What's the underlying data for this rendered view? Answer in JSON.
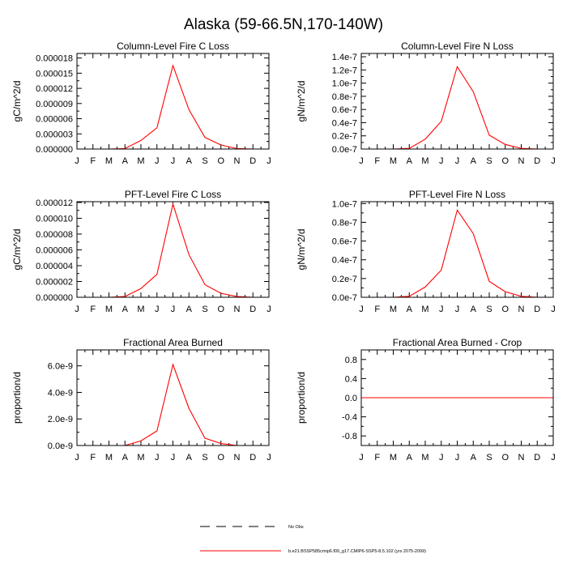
{
  "figure_title": "Alaska (59-66.5N,170-140W)",
  "month_labels": [
    "J",
    "F",
    "M",
    "A",
    "M",
    "J",
    "J",
    "A",
    "S",
    "O",
    "N",
    "D",
    "J"
  ],
  "colors": {
    "model_line": "#ff0000",
    "axis": "#000000",
    "obs_line": "#000000"
  },
  "legend": {
    "obs_label": "No Obs",
    "model_label": "b.e21.BSSP585cmip6.f09_g17.CMIP6-SSP5-8.5.102 (yrs 2075-2099)"
  },
  "chart_data": [
    {
      "type": "line",
      "title": "Column-Level Fire C Loss",
      "ylabel": "gC/m^2/d",
      "xlabel": "",
      "x": [
        1,
        2,
        3,
        4,
        5,
        6,
        7,
        8,
        9,
        10,
        11,
        12,
        13
      ],
      "ylim": [
        0,
        1.89e-05
      ],
      "yticks": [
        0,
        3e-06,
        6e-06,
        9e-06,
        1.2e-05,
        1.5e-05,
        1.8e-05
      ],
      "yticklabels": [
        "0.000000",
        "0.000003",
        "0.000006",
        "0.000009",
        "0.000012",
        "0.000015",
        "0.000018"
      ],
      "series": [
        {
          "name": "model",
          "values": [
            0,
            0,
            0,
            1e-07,
            1.7e-06,
            4.2e-06,
            1.65e-05,
            7.8e-06,
            2.3e-06,
            8e-07,
            1e-07,
            0,
            0
          ]
        }
      ]
    },
    {
      "type": "line",
      "title": "Column-Level Fire N Loss",
      "ylabel": "gN/m^2/d",
      "xlabel": "",
      "x": [
        1,
        2,
        3,
        4,
        5,
        6,
        7,
        8,
        9,
        10,
        11,
        12,
        13
      ],
      "ylim": [
        0,
        1.45e-07
      ],
      "yticks": [
        0,
        2e-08,
        4e-08,
        6e-08,
        8e-08,
        1e-07,
        1.2e-07,
        1.4e-07
      ],
      "yticklabels": [
        "0.0e-7",
        "0.2e-7",
        "0.4e-7",
        "0.6e-7",
        "0.8e-7",
        "1.0e-7",
        "1.2e-7",
        "1.4e-7"
      ],
      "series": [
        {
          "name": "model",
          "values": [
            0,
            0,
            0,
            1e-09,
            1.5e-08,
            4.2e-08,
            1.25e-07,
            8.7e-08,
            2.1e-08,
            7e-09,
            1e-09,
            0,
            0
          ]
        }
      ]
    },
    {
      "type": "line",
      "title": "PFT-Level Fire C Loss",
      "ylabel": "gC/m^2/d",
      "xlabel": "",
      "x": [
        1,
        2,
        3,
        4,
        5,
        6,
        7,
        8,
        9,
        10,
        11,
        12,
        13
      ],
      "ylim": [
        0,
        1.21e-05
      ],
      "yticks": [
        0,
        2e-06,
        4e-06,
        6e-06,
        8e-06,
        1e-05,
        1.2e-05
      ],
      "yticklabels": [
        "0.000000",
        "0.000002",
        "0.000004",
        "0.000006",
        "0.000008",
        "0.000010",
        "0.000012"
      ],
      "series": [
        {
          "name": "model",
          "values": [
            0,
            0,
            0,
            1e-07,
            1.1e-06,
            2.9e-06,
            1.18e-05,
            5.4e-06,
            1.6e-06,
            5e-07,
            1e-07,
            0,
            0
          ]
        }
      ]
    },
    {
      "type": "line",
      "title": "PFT-Level Fire N Loss",
      "ylabel": "gN/m^2/d",
      "xlabel": "",
      "x": [
        1,
        2,
        3,
        4,
        5,
        6,
        7,
        8,
        9,
        10,
        11,
        12,
        13
      ],
      "ylim": [
        0,
        1.02e-07
      ],
      "yticks": [
        0,
        2e-08,
        4e-08,
        6e-08,
        8e-08,
        1e-07
      ],
      "yticklabels": [
        "0.0e-7",
        "0.2e-7",
        "0.4e-7",
        "0.6e-7",
        "0.8e-7",
        "1.0e-7"
      ],
      "series": [
        {
          "name": "model",
          "values": [
            0,
            0,
            0,
            1e-09,
            1.1e-08,
            2.9e-08,
            9.3e-08,
            6.8e-08,
            1.7e-08,
            6e-09,
            1e-09,
            0,
            0
          ]
        }
      ]
    },
    {
      "type": "line",
      "title": "Fractional Area Burned",
      "ylabel": "proportion/d",
      "xlabel": "",
      "x": [
        1,
        2,
        3,
        4,
        5,
        6,
        7,
        8,
        9,
        10,
        11,
        12,
        13
      ],
      "ylim": [
        0,
        7.2e-09
      ],
      "yticks": [
        0,
        2e-09,
        4e-09,
        6e-09
      ],
      "yticklabels": [
        "0.0e-9",
        "2.0e-9",
        "4.0e-9",
        "6.0e-9"
      ],
      "series": [
        {
          "name": "model",
          "values": [
            0,
            0,
            0,
            0,
            3.5e-10,
            1.1e-09,
            6.1e-09,
            2.8e-09,
            5.5e-10,
            1.5e-10,
            0,
            0,
            0
          ]
        }
      ]
    },
    {
      "type": "line",
      "title": "Fractional Area Burned - Crop",
      "ylabel": "proportion/d",
      "xlabel": "",
      "x": [
        1,
        2,
        3,
        4,
        5,
        6,
        7,
        8,
        9,
        10,
        11,
        12,
        13
      ],
      "ylim": [
        -1,
        1
      ],
      "yticks": [
        -0.8,
        -0.4,
        0,
        0.4,
        0.8
      ],
      "yticklabels": [
        "-0.8",
        "-0.4",
        "0.0",
        "0.4",
        "0.8"
      ],
      "series": [
        {
          "name": "model",
          "values": [
            0,
            0,
            0,
            0,
            0,
            0,
            0,
            0,
            0,
            0,
            0,
            0,
            0
          ]
        }
      ]
    }
  ]
}
